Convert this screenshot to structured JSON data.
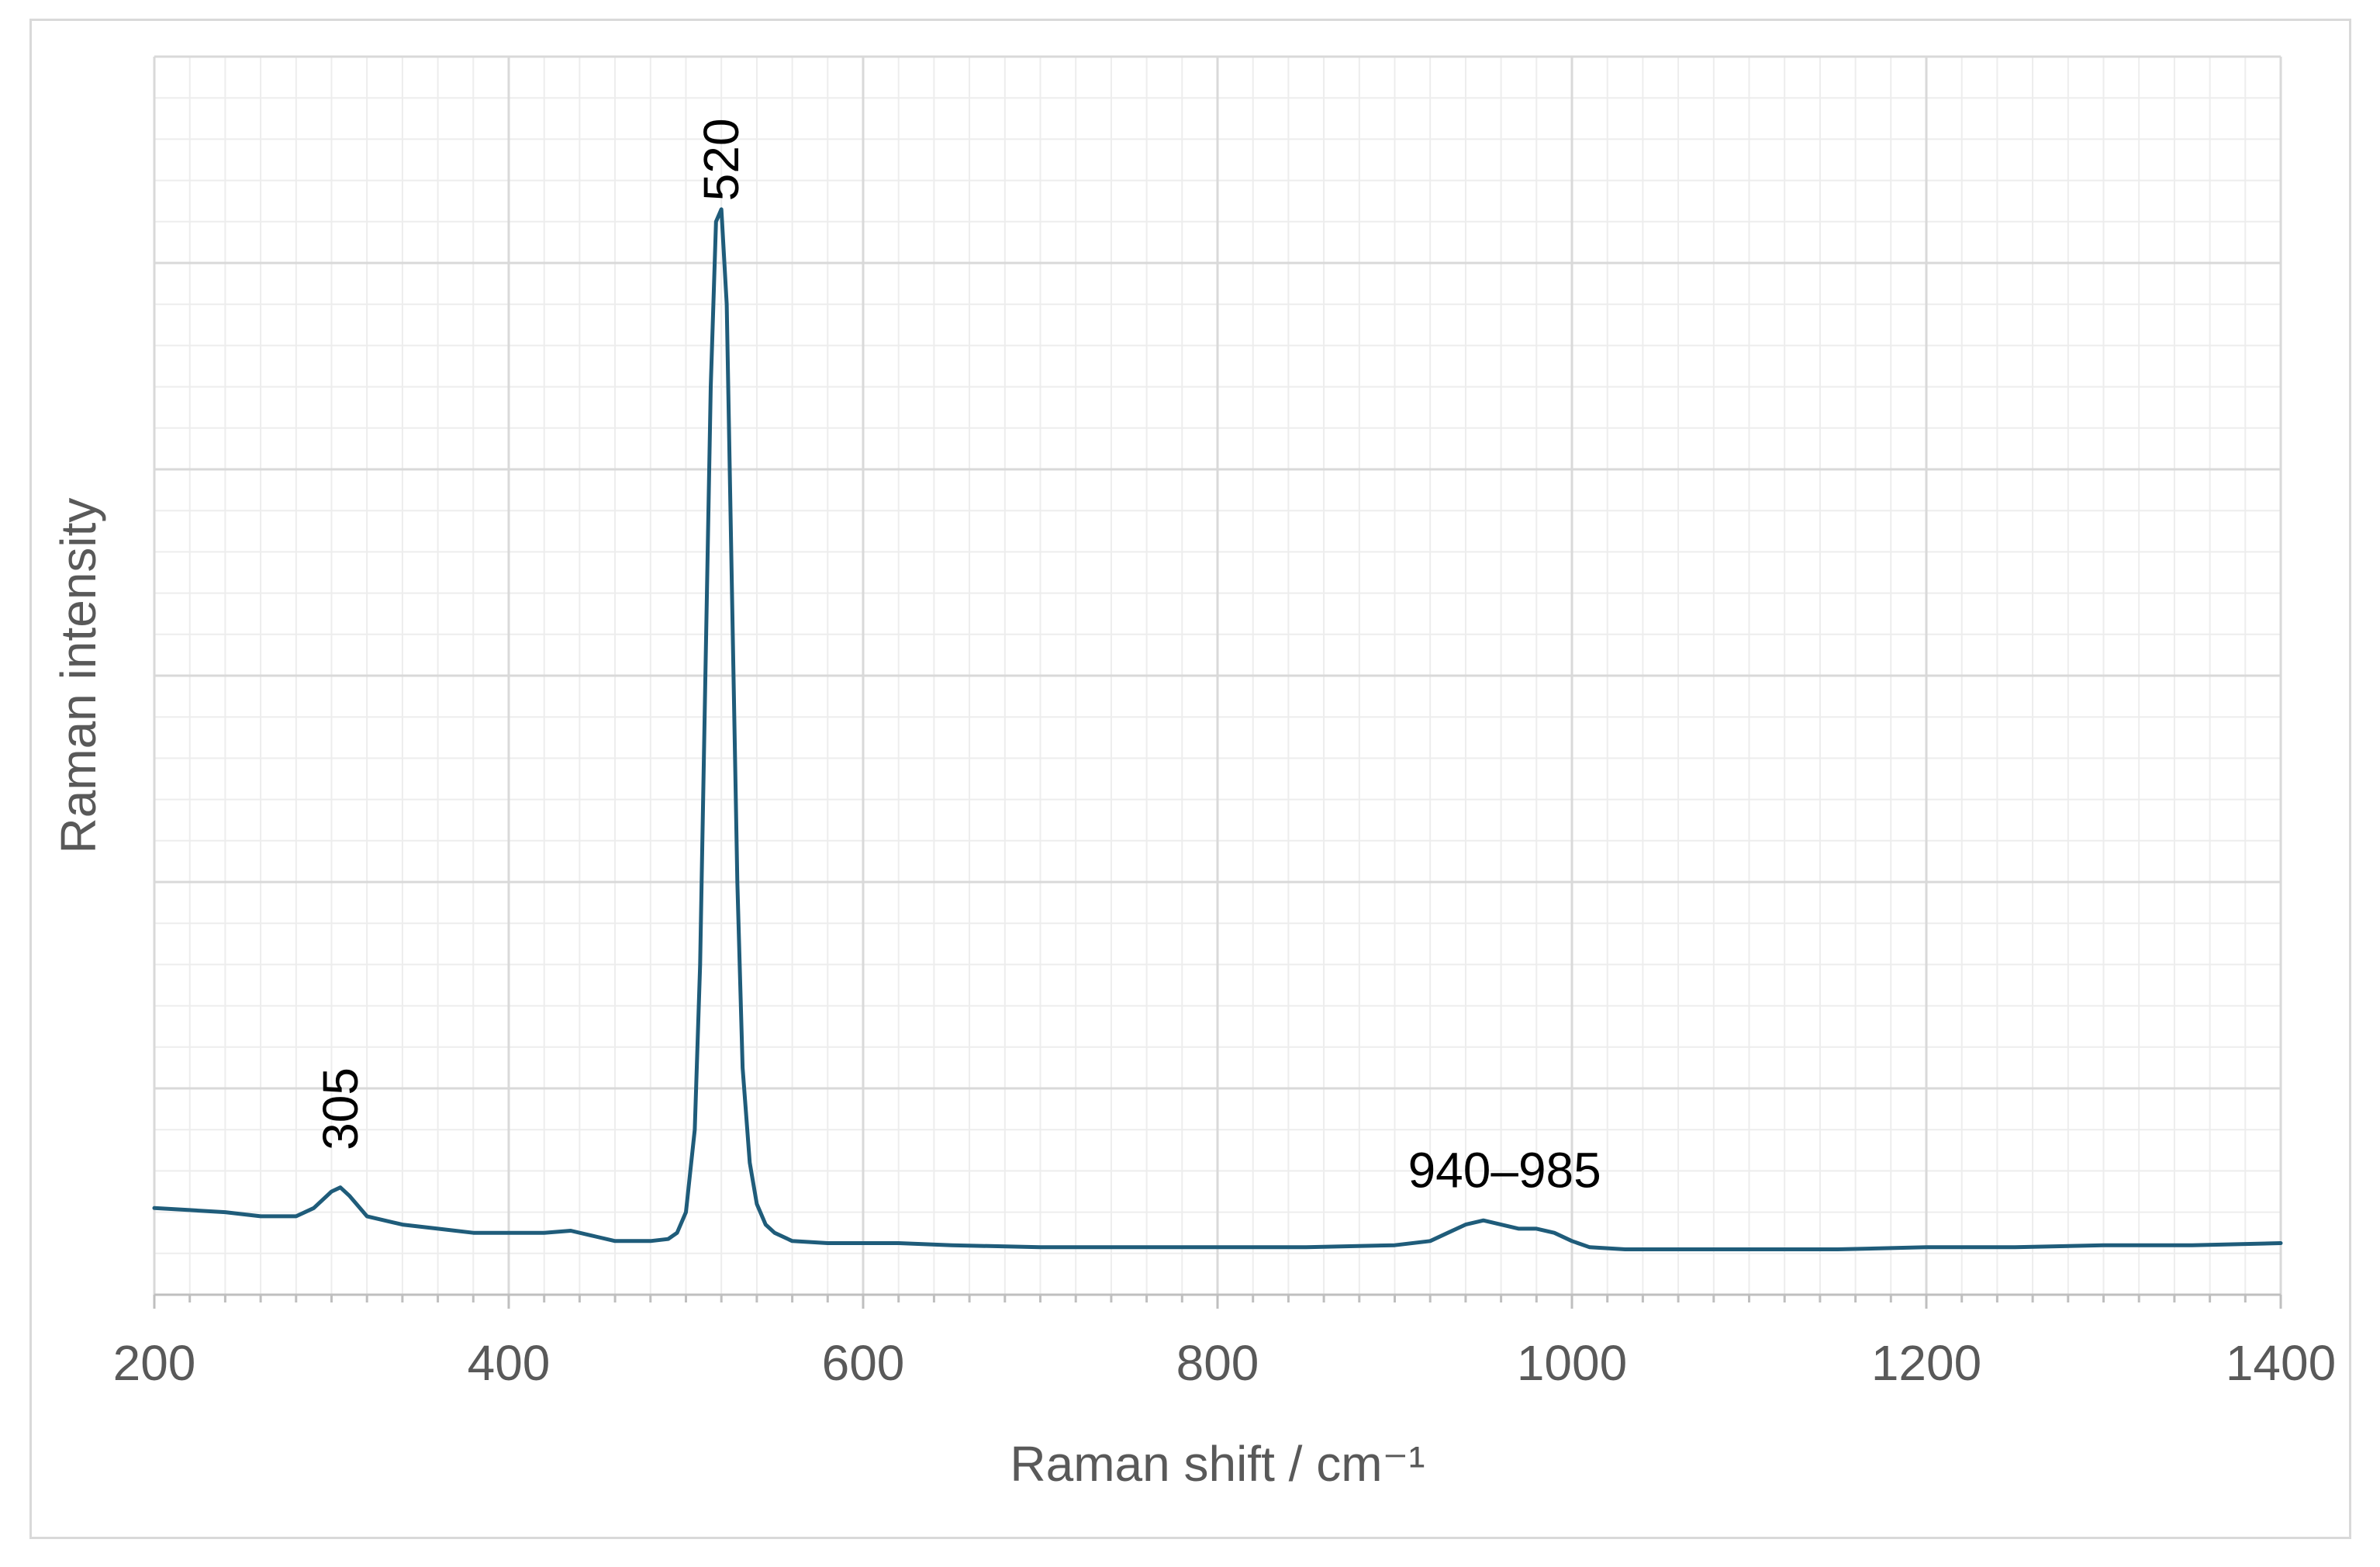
{
  "chart_data": {
    "type": "line",
    "xlabel": "Raman shift / cm⁻¹",
    "ylabel": "Raman intensity",
    "xlim": [
      200,
      1400
    ],
    "ylim": [
      0,
      30
    ],
    "x_ticks": [
      "200",
      "400",
      "600",
      "800",
      "1000",
      "1200",
      "1400"
    ],
    "grid": true,
    "y_tick_labels_shown": false,
    "line_color": "#1f5c7a",
    "annotations": [
      {
        "text": "520",
        "x": 520,
        "y": 26.5,
        "rotated": true
      },
      {
        "text": "305",
        "x": 305,
        "y": 3.5,
        "rotated": true
      },
      {
        "text": "940–985",
        "x": 962,
        "y": 2.6,
        "rotated": false
      }
    ],
    "series": [
      {
        "x": [
          200,
          220,
          240,
          260,
          280,
          290,
          300,
          305,
          310,
          320,
          340,
          360,
          380,
          400,
          420,
          435,
          450,
          460,
          470,
          480,
          490,
          495,
          500,
          505,
          508,
          511,
          514,
          517,
          520,
          523,
          526,
          529,
          532,
          536,
          540,
          545,
          550,
          560,
          580,
          600,
          620,
          650,
          700,
          750,
          800,
          850,
          900,
          920,
          930,
          940,
          950,
          960,
          970,
          980,
          990,
          1000,
          1010,
          1030,
          1060,
          1100,
          1150,
          1200,
          1250,
          1300,
          1350,
          1400
        ],
        "y": [
          2.1,
          2.05,
          2.0,
          1.9,
          1.9,
          2.1,
          2.5,
          2.6,
          2.4,
          1.9,
          1.7,
          1.6,
          1.5,
          1.5,
          1.5,
          1.55,
          1.4,
          1.3,
          1.3,
          1.3,
          1.35,
          1.5,
          2.0,
          4.0,
          8.0,
          15.0,
          22.0,
          26.0,
          26.3,
          24.0,
          17.0,
          10.0,
          5.5,
          3.2,
          2.2,
          1.7,
          1.5,
          1.3,
          1.25,
          1.25,
          1.25,
          1.2,
          1.15,
          1.15,
          1.15,
          1.15,
          1.2,
          1.3,
          1.5,
          1.7,
          1.8,
          1.7,
          1.6,
          1.6,
          1.5,
          1.3,
          1.15,
          1.1,
          1.1,
          1.1,
          1.1,
          1.15,
          1.15,
          1.2,
          1.2,
          1.25
        ]
      }
    ]
  }
}
